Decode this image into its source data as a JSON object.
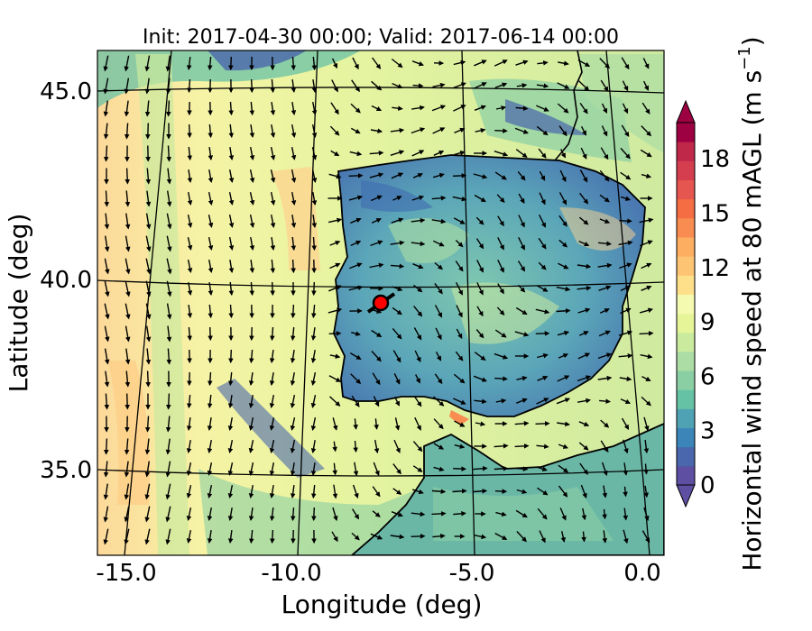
{
  "title": "Init: 2017-04-30 00:00; Valid: 2017-06-14 00:00",
  "xlabel": "Longitude (deg)",
  "ylabel": "Latitude (deg)",
  "x_ticks": [
    "-15.0",
    "-10.0",
    "-5.0",
    "0.0"
  ],
  "y_ticks": [
    "45.0",
    "40.0",
    "35.0"
  ],
  "colorbar": {
    "label_main": "Horizontal wind speed at 80 mAGL (m s",
    "label_sup": "−1",
    "label_close": ")",
    "ticks": [
      "0",
      "3",
      "6",
      "9",
      "12",
      "15",
      "18"
    ],
    "tick_values": [
      0,
      3,
      6,
      9,
      12,
      15,
      18
    ],
    "range": [
      0,
      20
    ],
    "extend": "both",
    "colors": [
      "#5e4fa2",
      "#4a67ad",
      "#3b85b9",
      "#4fa2b4",
      "#66c2a5",
      "#8acfa4",
      "#abdda4",
      "#caea9e",
      "#e6f598",
      "#f4fab0",
      "#fee08b",
      "#fdc474",
      "#fdae61",
      "#f88c51",
      "#f46d43",
      "#e4564f",
      "#d53e4f",
      "#c0284a",
      "#9e0142"
    ]
  },
  "chart_data": {
    "type": "map",
    "x_range_deg": [
      -16,
      0.2
    ],
    "y_range_deg": [
      32.8,
      46.2
    ],
    "marker": {
      "lon": -7.7,
      "lat": 39.3,
      "color": "#ff0000"
    }
  }
}
